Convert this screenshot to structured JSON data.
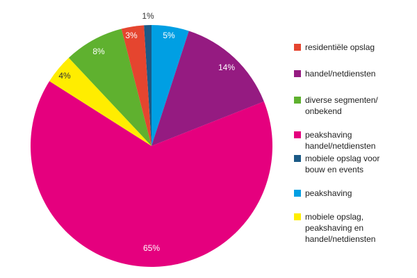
{
  "chart_data": {
    "type": "pie",
    "title": "",
    "legend_position": "right",
    "slices": [
      {
        "label": "peakshaving handel/netdiensten",
        "value": 65,
        "value_label": "65%",
        "color": "#e5007e",
        "label_color": "#ffffff"
      },
      {
        "label": "mobiele opslag, peakshaving en handel/netdiensten",
        "value": 4,
        "value_label": "4%",
        "color": "#ffed00",
        "label_color": "#333333"
      },
      {
        "label": "diverse segmenten/ onbekend",
        "value": 8,
        "value_label": "8%",
        "color": "#5fb12f",
        "label_color": "#ffffff"
      },
      {
        "label": "residentiële opslag",
        "value": 3,
        "value_label": "3%",
        "color": "#e5452f",
        "label_color": "#ffffff"
      },
      {
        "label": "mobiele opslag voor bouw en events",
        "value": 1,
        "value_label": "1%",
        "color": "#1b5a86",
        "label_color": "#333333"
      },
      {
        "label": "peakshaving",
        "value": 5,
        "value_label": "5%",
        "color": "#009fe3",
        "label_color": "#ffffff"
      },
      {
        "label": "handel/netdiensten",
        "value": 14,
        "value_label": "14%",
        "color": "#951b81",
        "label_color": "#ffffff"
      }
    ],
    "legend": [
      {
        "label": "residentiële opslag",
        "color": "#e5452f"
      },
      {
        "label": "handel/netdiensten",
        "color": "#951b81"
      },
      {
        "label": "diverse segmenten/\nonbekend",
        "color": "#5fb12f"
      },
      {
        "label": "peakshaving\nhandel/netdiensten",
        "color": "#e5007e"
      },
      {
        "label": "mobiele opslag voor\nbouw en events",
        "color": "#1b5a86"
      },
      {
        "label": "peakshaving",
        "color": "#009fe3"
      },
      {
        "label": "mobiele opslag,\npeakshaving en\nhandel/netdiensten",
        "color": "#ffed00"
      }
    ]
  }
}
